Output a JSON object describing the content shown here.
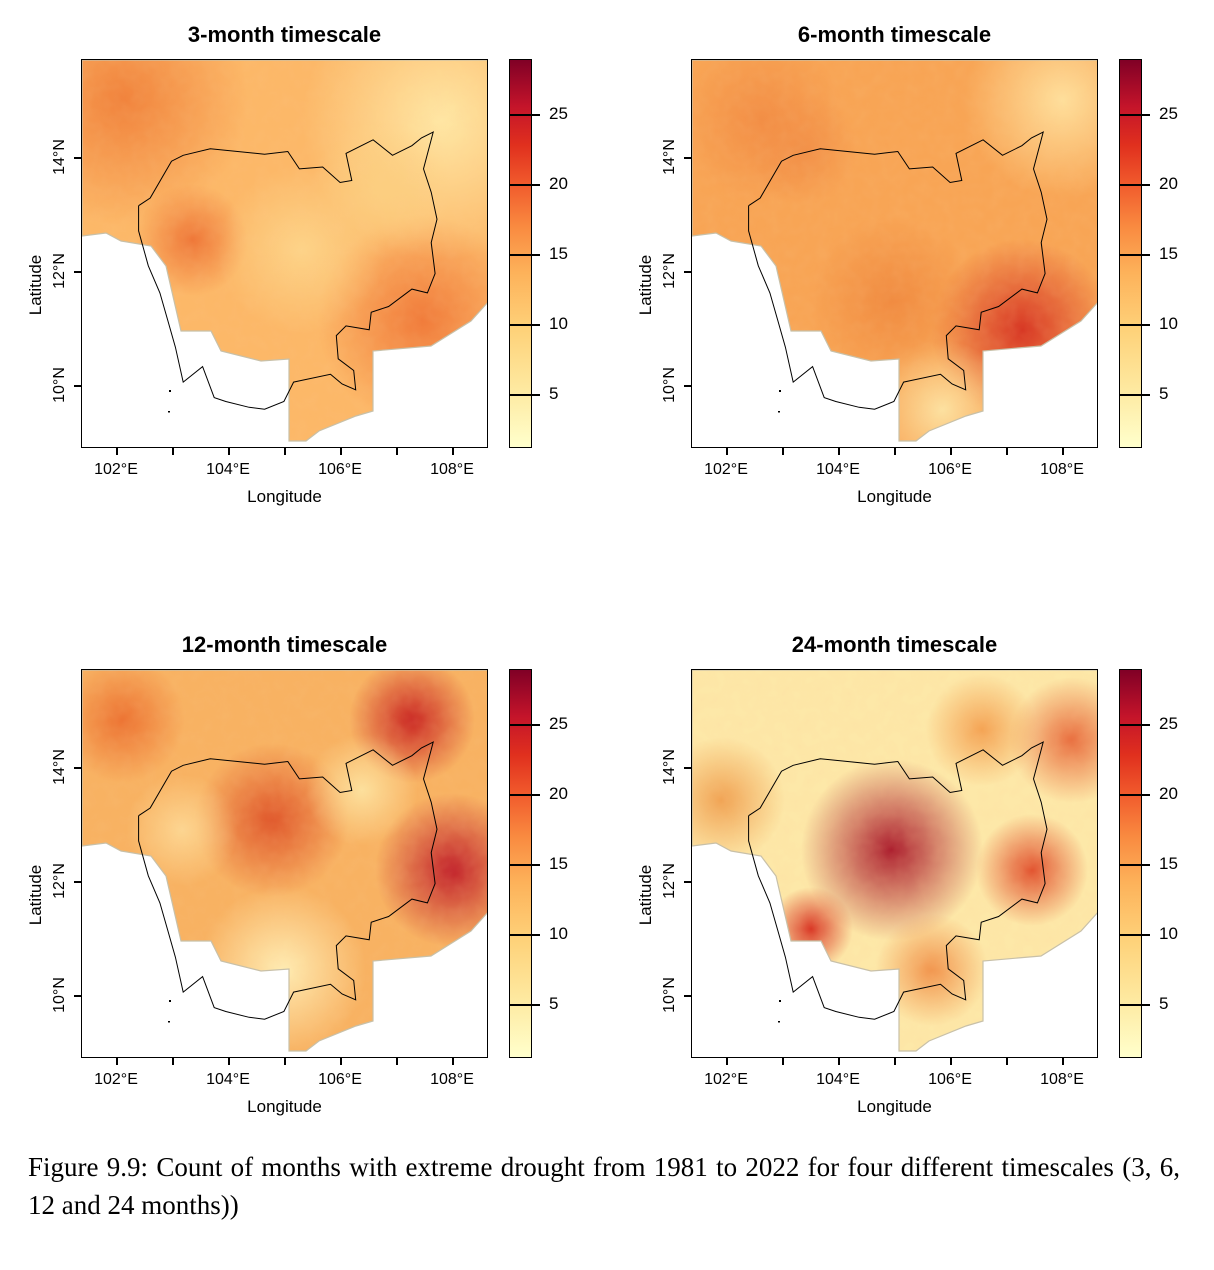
{
  "figure": {
    "caption": "Figure 9.9: Count of months with extreme drought from 1981 to 2022 for four different timescales (3, 6, 12 and 24 months))"
  },
  "chart_data": [
    {
      "type": "heatmap",
      "title": "3-month timescale",
      "xlabel": "Longitude",
      "ylabel": "Latitude",
      "x_ticks": [
        "102°E",
        "104°E",
        "106°E",
        "108°E"
      ],
      "y_ticks": [
        "10°N",
        "12°N",
        "14°N"
      ],
      "xlim": [
        101.4,
        108.6
      ],
      "ylim": [
        8.9,
        15.7
      ],
      "colorbar": {
        "ticks": [
          "5",
          "10",
          "15",
          "20",
          "25"
        ],
        "range": [
          1,
          29
        ],
        "palette": [
          "#ffffcc",
          "#fed27a",
          "#f98a40",
          "#e0301e",
          "#800026"
        ]
      }
    },
    {
      "type": "heatmap",
      "title": "6-month timescale",
      "xlabel": "Longitude",
      "ylabel": "Latitude",
      "x_ticks": [
        "102°E",
        "104°E",
        "106°E",
        "108°E"
      ],
      "y_ticks": [
        "10°N",
        "12°N",
        "14°N"
      ],
      "xlim": [
        101.4,
        108.6
      ],
      "ylim": [
        8.9,
        15.7
      ],
      "colorbar": {
        "ticks": [
          "5",
          "10",
          "15",
          "20",
          "25"
        ],
        "range": [
          1,
          29
        ],
        "palette": [
          "#ffffcc",
          "#fed27a",
          "#f98a40",
          "#e0301e",
          "#800026"
        ]
      }
    },
    {
      "type": "heatmap",
      "title": "12-month timescale",
      "xlabel": "Longitude",
      "ylabel": "Latitude",
      "x_ticks": [
        "102°E",
        "104°E",
        "106°E",
        "108°E"
      ],
      "y_ticks": [
        "10°N",
        "12°N",
        "14°N"
      ],
      "xlim": [
        101.4,
        108.6
      ],
      "ylim": [
        8.9,
        15.7
      ],
      "colorbar": {
        "ticks": [
          "5",
          "10",
          "15",
          "20",
          "25"
        ],
        "range": [
          1,
          29
        ],
        "palette": [
          "#ffffcc",
          "#fed27a",
          "#f98a40",
          "#e0301e",
          "#800026"
        ]
      }
    },
    {
      "type": "heatmap",
      "title": "24-month timescale",
      "xlabel": "Longitude",
      "ylabel": "Latitude",
      "x_ticks": [
        "102°E",
        "104°E",
        "106°E",
        "108°E"
      ],
      "y_ticks": [
        "10°N",
        "12°N",
        "14°N"
      ],
      "xlim": [
        101.4,
        108.6
      ],
      "ylim": [
        8.9,
        15.7
      ],
      "colorbar": {
        "ticks": [
          "5",
          "10",
          "15",
          "20",
          "25"
        ],
        "range": [
          1,
          29
        ],
        "palette": [
          "#ffffcc",
          "#fed27a",
          "#f98a40",
          "#e0301e",
          "#800026"
        ]
      }
    }
  ]
}
